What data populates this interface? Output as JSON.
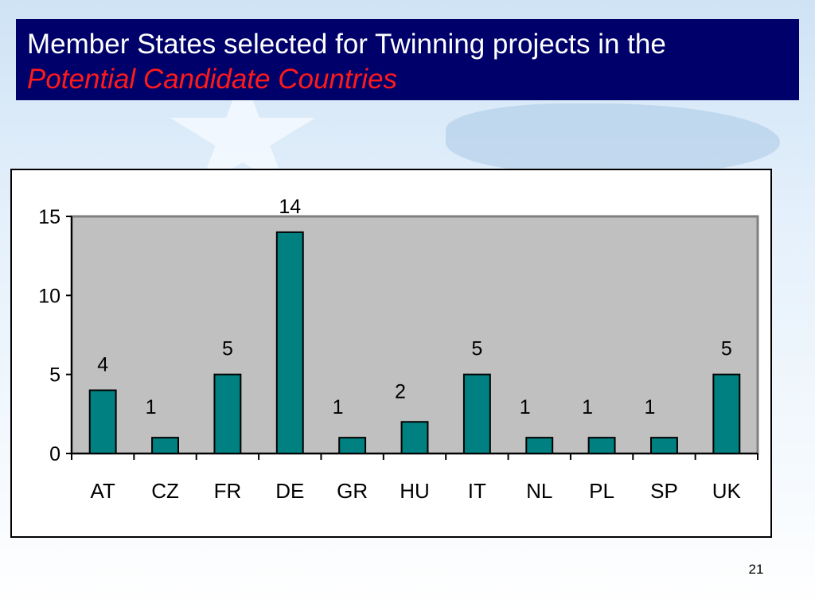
{
  "slide": {
    "title_line1": "Member States selected for Twinning projects in the",
    "title_line2": "Potential Candidate Countries",
    "page_number": "21"
  },
  "colors": {
    "title_bg": "#00006a",
    "title_text": "#ffffff",
    "title_highlight": "#ff1a1a",
    "plot_bg": "#c0c0c0",
    "bar_fill": "#008080"
  },
  "chart_data": {
    "type": "bar",
    "categories": [
      "AT",
      "CZ",
      "FR",
      "DE",
      "GR",
      "HU",
      "IT",
      "NL",
      "PL",
      "SP",
      "UK"
    ],
    "values": [
      4,
      1,
      5,
      14,
      1,
      2,
      5,
      1,
      1,
      1,
      5
    ],
    "ylim": [
      0,
      15
    ],
    "yticks": [
      0,
      5,
      10,
      15
    ],
    "data_labels": true,
    "grid": false,
    "legend": "none"
  }
}
